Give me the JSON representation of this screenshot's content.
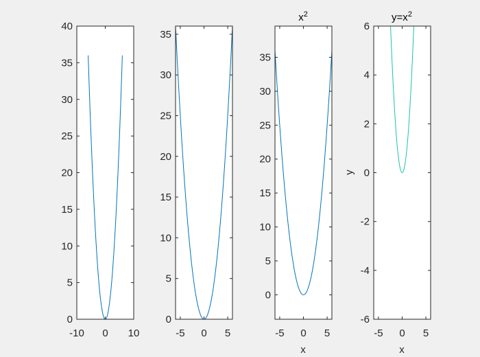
{
  "figure": {
    "background": "#f0f0f0"
  },
  "chart_data": [
    {
      "type": "line",
      "title": "",
      "title_sup": "",
      "xlabel": "",
      "ylabel": "",
      "xlim": [
        -10,
        10
      ],
      "ylim": [
        0,
        40
      ],
      "xticks": [
        -10,
        0,
        10
      ],
      "yticks": [
        0,
        5,
        10,
        15,
        20,
        25,
        30,
        35,
        40
      ],
      "grid": false,
      "series": [
        {
          "function": "x^2",
          "x_range": [
            -6,
            6
          ],
          "color": "#0072bd"
        }
      ]
    },
    {
      "type": "line",
      "title": "",
      "title_sup": "",
      "xlabel": "",
      "ylabel": "",
      "xlim": [
        -6,
        6
      ],
      "ylim": [
        0,
        36
      ],
      "xticks": [
        -5,
        0,
        5
      ],
      "yticks": [
        0,
        5,
        10,
        15,
        20,
        25,
        30,
        35
      ],
      "grid": false,
      "series": [
        {
          "function": "x^2",
          "x_range": [
            -6,
            6
          ],
          "color": "#0072bd"
        }
      ]
    },
    {
      "type": "line",
      "title": "x",
      "title_sup": "2",
      "xlabel": "x",
      "ylabel": "",
      "xlim": [
        -6,
        6
      ],
      "ylim": [
        -3.6,
        39.6
      ],
      "xticks": [
        -5,
        0,
        5
      ],
      "yticks": [
        0,
        5,
        10,
        15,
        20,
        25,
        30,
        35
      ],
      "grid": false,
      "series": [
        {
          "function": "x^2",
          "x_range": [
            -6,
            6
          ],
          "color": "#0072bd"
        }
      ]
    },
    {
      "type": "line",
      "title": "y=x",
      "title_sup": "2",
      "xlabel": "x",
      "ylabel": "y",
      "xlim": [
        -6,
        6
      ],
      "ylim": [
        -6,
        6
      ],
      "xticks": [
        -5,
        0,
        5
      ],
      "yticks": [
        -6,
        -4,
        -2,
        0,
        2,
        4,
        6
      ],
      "grid": false,
      "series": [
        {
          "function": "x^2",
          "x_range": [
            -6,
            6
          ],
          "color": "#1ec2a8"
        }
      ]
    }
  ]
}
